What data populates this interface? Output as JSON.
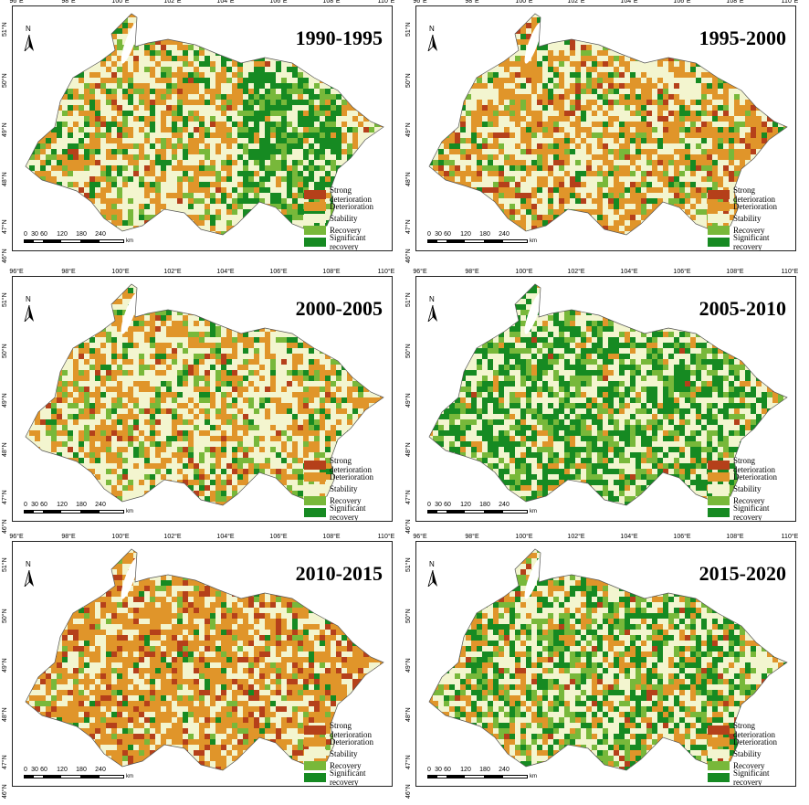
{
  "panels": [
    {
      "title": "1990-1995",
      "mix": [
        0.03,
        0.3,
        0.42,
        0.12,
        0.13
      ],
      "green_east": true
    },
    {
      "title": "1995-2000",
      "mix": [
        0.06,
        0.38,
        0.4,
        0.08,
        0.08
      ],
      "green_east": false
    },
    {
      "title": "2000-2005",
      "mix": [
        0.03,
        0.3,
        0.47,
        0.12,
        0.08
      ],
      "green_east": false
    },
    {
      "title": "2005-2010",
      "mix": [
        0.01,
        0.08,
        0.36,
        0.2,
        0.35
      ],
      "green_east": false
    },
    {
      "title": "2010-2015",
      "mix": [
        0.12,
        0.48,
        0.3,
        0.06,
        0.04
      ],
      "green_east": false
    },
    {
      "title": "2015-2020",
      "mix": [
        0.03,
        0.2,
        0.35,
        0.17,
        0.25
      ],
      "green_east": false
    }
  ],
  "longitude_labels": [
    "96°E",
    "98°E",
    "100°E",
    "102°E",
    "104°E",
    "106°E",
    "108°E",
    "110°E"
  ],
  "latitude_labels": [
    "51°N",
    "50°N",
    "49°N",
    "48°N",
    "47°N",
    "46°N"
  ],
  "legend": [
    {
      "label": "Strong deterioration",
      "color": "#b5401a"
    },
    {
      "label": "Deterioration",
      "color": "#e0952a"
    },
    {
      "label": "Stability",
      "color": "#f3f5cf"
    },
    {
      "label": "Recovery",
      "color": "#78b83a"
    },
    {
      "label": "Significant recovery",
      "color": "#168a22"
    }
  ],
  "scale_bar": {
    "ticks": [
      "0",
      "30",
      "60",
      "120",
      "180",
      "240"
    ],
    "unit": "km"
  },
  "north_label": "N"
}
